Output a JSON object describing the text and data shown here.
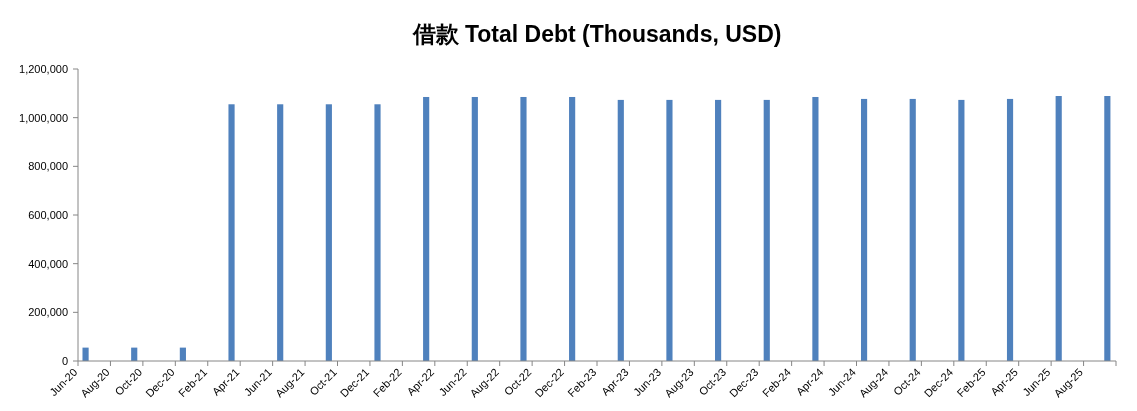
{
  "chart_data": {
    "type": "bar",
    "title": "借款 Total Debt (Thousands, USD)",
    "x": [
      "2020-06-15",
      "2020-09-15",
      "2020-12-15",
      "2021-03-15",
      "2021-06-15",
      "2021-09-15",
      "2021-12-15",
      "2022-03-15",
      "2022-06-15",
      "2022-09-15",
      "2022-12-15",
      "2023-03-15",
      "2023-06-15",
      "2023-09-15",
      "2023-12-15",
      "2024-03-15",
      "2024-06-15",
      "2024-09-15",
      "2024-12-15",
      "2025-03-15",
      "2025-06-15",
      "2025-09-15"
    ],
    "values": [
      55000,
      55000,
      55000,
      1055000,
      1055000,
      1055000,
      1055000,
      1085000,
      1085000,
      1085000,
      1085000,
      1073000,
      1073000,
      1073000,
      1073000,
      1085000,
      1077000,
      1077000,
      1073000,
      1077000,
      1089000,
      1089000
    ],
    "color": "#4f81bd",
    "xlim": [
      "2020-06",
      "2025-10"
    ],
    "xticks": [
      {
        "value": "2020-06",
        "label": "Jun-20"
      },
      {
        "value": "2020-08",
        "label": "Aug-20"
      },
      {
        "value": "2020-10",
        "label": "Oct-20"
      },
      {
        "value": "2020-12",
        "label": "Dec-20"
      },
      {
        "value": "2021-02",
        "label": "Feb-21"
      },
      {
        "value": "2021-04",
        "label": "Apr-21"
      },
      {
        "value": "2021-06",
        "label": "Jun-21"
      },
      {
        "value": "2021-08",
        "label": "Aug-21"
      },
      {
        "value": "2021-10",
        "label": "Oct-21"
      },
      {
        "value": "2021-12",
        "label": "Dec-21"
      },
      {
        "value": "2022-02",
        "label": "Feb-22"
      },
      {
        "value": "2022-04",
        "label": "Apr-22"
      },
      {
        "value": "2022-06",
        "label": "Jun-22"
      },
      {
        "value": "2022-08",
        "label": "Aug-22"
      },
      {
        "value": "2022-10",
        "label": "Oct-22"
      },
      {
        "value": "2022-12",
        "label": "Dec-22"
      },
      {
        "value": "2023-02",
        "label": "Feb-23"
      },
      {
        "value": "2023-04",
        "label": "Apr-23"
      },
      {
        "value": "2023-06",
        "label": "Jun-23"
      },
      {
        "value": "2023-08",
        "label": "Aug-23"
      },
      {
        "value": "2023-10",
        "label": "Oct-23"
      },
      {
        "value": "2023-12",
        "label": "Dec-23"
      },
      {
        "value": "2024-02",
        "label": "Feb-24"
      },
      {
        "value": "2024-04",
        "label": "Apr-24"
      },
      {
        "value": "2024-06",
        "label": "Jun-24"
      },
      {
        "value": "2024-08",
        "label": "Aug-24"
      },
      {
        "value": "2024-10",
        "label": "Oct-24"
      },
      {
        "value": "2024-12",
        "label": "Dec-24"
      },
      {
        "value": "2025-02",
        "label": "Feb-25"
      },
      {
        "value": "2025-04",
        "label": "Apr-25"
      },
      {
        "value": "2025-06",
        "label": "Jun-25"
      },
      {
        "value": "2025-08",
        "label": "Aug-25"
      },
      {
        "value": "2025-10",
        "label": null
      }
    ],
    "ylim": [
      0,
      1200000
    ],
    "yticks": [
      0,
      {
        "value": 200000,
        "label": "200,000"
      },
      {
        "value": 400000,
        "label": "400,000"
      },
      {
        "value": 600000,
        "label": "600,000"
      },
      {
        "value": 800000,
        "label": "800,000"
      },
      {
        "value": 1000000,
        "label": "1,000,000"
      },
      {
        "value": 1200000,
        "label": "1,200,000"
      }
    ],
    "grid": false
  }
}
